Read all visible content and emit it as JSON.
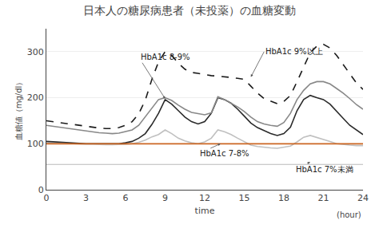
{
  "chart_data": {
    "type": "line",
    "title": "日本人の糖尿病患者（未投薬）の血糖変動",
    "x_label": "time",
    "y_label": "血糖値（mg/dl）",
    "x_unit_label": "(hour)",
    "xlim": [
      0,
      24
    ],
    "ylim": [
      0,
      350
    ],
    "xticks": [
      0,
      3,
      6,
      9,
      12,
      15,
      18,
      21,
      24
    ],
    "yticks": [
      0,
      100,
      200,
      300
    ],
    "grid": "y",
    "x": [
      0,
      0.5,
      1,
      1.5,
      2,
      2.5,
      3,
      3.5,
      4,
      4.5,
      5,
      5.5,
      6,
      6.5,
      7,
      7.5,
      8,
      8.5,
      9,
      9.5,
      10,
      10.5,
      11,
      11.5,
      12,
      12.5,
      13,
      13.5,
      14,
      14.5,
      15,
      15.5,
      16,
      16.5,
      17,
      17.5,
      18,
      18.5,
      19,
      19.5,
      20,
      20.5,
      21,
      21.5,
      22,
      22.5,
      23,
      23.5,
      24
    ],
    "series": [
      {
        "color": "#c0c0c0",
        "line_style": "solid",
        "values": [
          102,
          101,
          100,
          100,
          100,
          99,
          99,
          99,
          98,
          98,
          98,
          98,
          99,
          100,
          103,
          108,
          115,
          120,
          130,
          122,
          112,
          106,
          102,
          100,
          104,
          112,
          130,
          126,
          120,
          112,
          104,
          97,
          94,
          92,
          91,
          90,
          92,
          95,
          104,
          114,
          118,
          114,
          110,
          105,
          100,
          98,
          97,
          96,
          96
        ]
      },
      {
        "color": "#2a2a2a",
        "line_style": "solid",
        "values": [
          105,
          104,
          103,
          102,
          101,
          100,
          100,
          100,
          100,
          100,
          100,
          100,
          102,
          105,
          112,
          122,
          142,
          166,
          196,
          186,
          172,
          158,
          148,
          143,
          148,
          166,
          200,
          196,
          188,
          175,
          160,
          145,
          135,
          128,
          122,
          118,
          122,
          136,
          172,
          196,
          205,
          200,
          196,
          186,
          170,
          155,
          140,
          130,
          120
        ]
      },
      {
        "color": "#888888",
        "line_style": "solid",
        "values": [
          140,
          138,
          136,
          133,
          131,
          129,
          127,
          125,
          124,
          123,
          122,
          123,
          126,
          130,
          140,
          158,
          178,
          196,
          200,
          194,
          184,
          175,
          168,
          165,
          163,
          167,
          202,
          196,
          188,
          180,
          170,
          158,
          148,
          143,
          140,
          138,
          146,
          166,
          196,
          216,
          230,
          235,
          235,
          230,
          220,
          210,
          198,
          185,
          175
        ]
      },
      {
        "color": "#1a1a1a",
        "line_style": "dashed",
        "values": [
          150,
          148,
          146,
          143,
          141,
          139,
          137,
          135,
          134,
          133,
          133,
          135,
          140,
          148,
          165,
          195,
          240,
          278,
          300,
          292,
          275,
          262,
          255,
          253,
          250,
          248,
          247,
          246,
          244,
          242,
          240,
          225,
          210,
          198,
          192,
          187,
          192,
          205,
          235,
          268,
          298,
          312,
          316,
          308,
          292,
          272,
          252,
          232,
          218
        ]
      }
    ],
    "hlines": [
      {
        "y": 55,
        "color": "#bbbbbb"
      },
      {
        "y": 100,
        "color": "#cc6622"
      }
    ],
    "annotations": [
      {
        "text": "HbA1c 8-9%",
        "x": 9.0,
        "y": 198,
        "text_x": 7.0,
        "text_y": 288
      },
      {
        "text": "HbA1c 9%以上",
        "x": 15.5,
        "y": 245,
        "text_x": 16.5,
        "text_y": 300
      },
      {
        "text": "HbA1c 7-8%",
        "x": 13.2,
        "y": 100,
        "text_x": 11.5,
        "text_y": 78
      },
      {
        "text": "HbA1c 7%未満",
        "x": 20.0,
        "y": 60,
        "text_x": 18.8,
        "text_y": 45
      }
    ]
  }
}
